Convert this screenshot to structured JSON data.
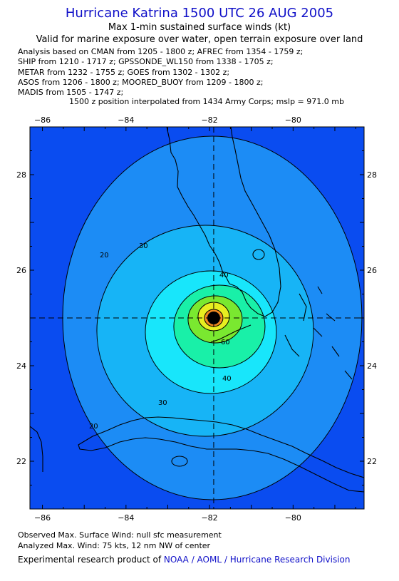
{
  "header": {
    "title": "Hurricane Katrina 1500 UTC 26 AUG 2005",
    "subtitle": "Max 1-min sustained surface winds (kt)",
    "validity": "Valid for marine exposure over water, open terrain exposure over land"
  },
  "analysis_lines": [
    "Analysis based on  CMAN from 1205 - 1800 z;  AFREC from 1354 - 1759 z;",
    "SHIP from 1210 - 1717 z;  GPSSONDE_WL150 from 1338 - 1705 z;",
    "METAR from 1232 - 1755 z;  GOES from 1302 - 1302 z;",
    "ASOS from 1206 - 1800 z;  MOORED_BUOY from 1209 - 1800 z;",
    "MADIS from 1505 - 1747 z;"
  ],
  "position_note": "1500 z position interpolated from 1434 Army Corps; mslp = 971.0 mb",
  "footer": {
    "observed": "Observed Max. Surface Wind: null sfc measurement",
    "analyzed": "Analyzed Max. Wind: 75 kts, 12 nm NW of center",
    "credit_prefix": "Experimental research product of ",
    "credit_link": "NOAA / AOML / Hurricane Research Division"
  },
  "chart_data": {
    "type": "contour",
    "x_ticks": [
      -86,
      -84,
      -82,
      -80
    ],
    "y_ticks": [
      22,
      24,
      26,
      28
    ],
    "xlim": [
      -86.3,
      -78.3
    ],
    "ylim": [
      21.0,
      29.0
    ],
    "center": {
      "lon": -81.9,
      "lat": 25.0
    },
    "contour_levels": [
      20,
      30,
      40,
      50,
      60,
      70
    ],
    "labeled_contours": [
      20,
      30,
      40,
      60
    ],
    "max_wind_kt": 75,
    "colors": {
      "background": "#0a4cf0",
      "band_20": "#1c8cf5",
      "band_30": "#17b4f6",
      "band_40": "#18e6fb",
      "band_50": "#19f0a8",
      "band_60": "#7ae830",
      "band_70": "#e8ee20",
      "band_75": "#f28a20"
    }
  }
}
